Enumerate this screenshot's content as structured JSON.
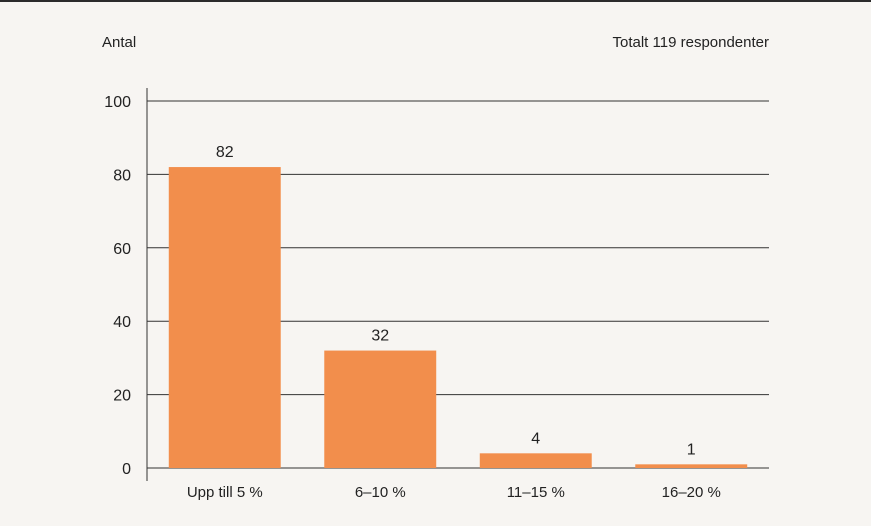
{
  "chart_data": {
    "type": "bar",
    "ylabel": "Antal",
    "annotation": "Totalt 119 respondenter",
    "categories": [
      "Upp till 5 %",
      "6–10 %",
      "11–15 %",
      "16–20 %"
    ],
    "values": [
      82,
      32,
      4,
      1
    ],
    "ylim": [
      0,
      100
    ],
    "yticks": [
      0,
      20,
      40,
      60,
      80,
      100
    ],
    "grid": true,
    "bar_color": "#f28e4c",
    "grid_color": "#333333"
  }
}
